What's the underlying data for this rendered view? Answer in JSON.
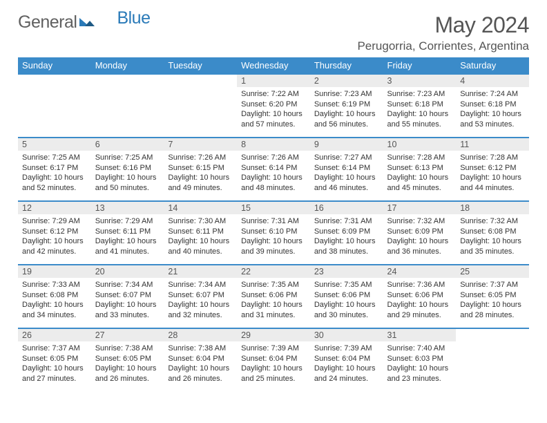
{
  "brand": {
    "word1": "General",
    "word2": "Blue",
    "color_gray": "#606060",
    "color_blue": "#2a7ab8"
  },
  "title": "May 2024",
  "location": "Perugorria, Corrientes, Argentina",
  "theme": {
    "header_bg": "#3b8bc9",
    "header_text": "#ffffff",
    "daynum_bg": "#ececec",
    "row_border": "#3b8bc9",
    "body_text": "#333333",
    "page_bg": "#ffffff",
    "base_font_size": 11
  },
  "weekdays": [
    "Sunday",
    "Monday",
    "Tuesday",
    "Wednesday",
    "Thursday",
    "Friday",
    "Saturday"
  ],
  "weeks": [
    [
      {
        "empty": true
      },
      {
        "empty": true
      },
      {
        "empty": true
      },
      {
        "n": "1",
        "sr": "7:22 AM",
        "ss": "6:20 PM",
        "dl": "10 hours and 57 minutes."
      },
      {
        "n": "2",
        "sr": "7:23 AM",
        "ss": "6:19 PM",
        "dl": "10 hours and 56 minutes."
      },
      {
        "n": "3",
        "sr": "7:23 AM",
        "ss": "6:18 PM",
        "dl": "10 hours and 55 minutes."
      },
      {
        "n": "4",
        "sr": "7:24 AM",
        "ss": "6:18 PM",
        "dl": "10 hours and 53 minutes."
      }
    ],
    [
      {
        "n": "5",
        "sr": "7:25 AM",
        "ss": "6:17 PM",
        "dl": "10 hours and 52 minutes."
      },
      {
        "n": "6",
        "sr": "7:25 AM",
        "ss": "6:16 PM",
        "dl": "10 hours and 50 minutes."
      },
      {
        "n": "7",
        "sr": "7:26 AM",
        "ss": "6:15 PM",
        "dl": "10 hours and 49 minutes."
      },
      {
        "n": "8",
        "sr": "7:26 AM",
        "ss": "6:14 PM",
        "dl": "10 hours and 48 minutes."
      },
      {
        "n": "9",
        "sr": "7:27 AM",
        "ss": "6:14 PM",
        "dl": "10 hours and 46 minutes."
      },
      {
        "n": "10",
        "sr": "7:28 AM",
        "ss": "6:13 PM",
        "dl": "10 hours and 45 minutes."
      },
      {
        "n": "11",
        "sr": "7:28 AM",
        "ss": "6:12 PM",
        "dl": "10 hours and 44 minutes."
      }
    ],
    [
      {
        "n": "12",
        "sr": "7:29 AM",
        "ss": "6:12 PM",
        "dl": "10 hours and 42 minutes."
      },
      {
        "n": "13",
        "sr": "7:29 AM",
        "ss": "6:11 PM",
        "dl": "10 hours and 41 minutes."
      },
      {
        "n": "14",
        "sr": "7:30 AM",
        "ss": "6:11 PM",
        "dl": "10 hours and 40 minutes."
      },
      {
        "n": "15",
        "sr": "7:31 AM",
        "ss": "6:10 PM",
        "dl": "10 hours and 39 minutes."
      },
      {
        "n": "16",
        "sr": "7:31 AM",
        "ss": "6:09 PM",
        "dl": "10 hours and 38 minutes."
      },
      {
        "n": "17",
        "sr": "7:32 AM",
        "ss": "6:09 PM",
        "dl": "10 hours and 36 minutes."
      },
      {
        "n": "18",
        "sr": "7:32 AM",
        "ss": "6:08 PM",
        "dl": "10 hours and 35 minutes."
      }
    ],
    [
      {
        "n": "19",
        "sr": "7:33 AM",
        "ss": "6:08 PM",
        "dl": "10 hours and 34 minutes."
      },
      {
        "n": "20",
        "sr": "7:34 AM",
        "ss": "6:07 PM",
        "dl": "10 hours and 33 minutes."
      },
      {
        "n": "21",
        "sr": "7:34 AM",
        "ss": "6:07 PM",
        "dl": "10 hours and 32 minutes."
      },
      {
        "n": "22",
        "sr": "7:35 AM",
        "ss": "6:06 PM",
        "dl": "10 hours and 31 minutes."
      },
      {
        "n": "23",
        "sr": "7:35 AM",
        "ss": "6:06 PM",
        "dl": "10 hours and 30 minutes."
      },
      {
        "n": "24",
        "sr": "7:36 AM",
        "ss": "6:06 PM",
        "dl": "10 hours and 29 minutes."
      },
      {
        "n": "25",
        "sr": "7:37 AM",
        "ss": "6:05 PM",
        "dl": "10 hours and 28 minutes."
      }
    ],
    [
      {
        "n": "26",
        "sr": "7:37 AM",
        "ss": "6:05 PM",
        "dl": "10 hours and 27 minutes."
      },
      {
        "n": "27",
        "sr": "7:38 AM",
        "ss": "6:05 PM",
        "dl": "10 hours and 26 minutes."
      },
      {
        "n": "28",
        "sr": "7:38 AM",
        "ss": "6:04 PM",
        "dl": "10 hours and 26 minutes."
      },
      {
        "n": "29",
        "sr": "7:39 AM",
        "ss": "6:04 PM",
        "dl": "10 hours and 25 minutes."
      },
      {
        "n": "30",
        "sr": "7:39 AM",
        "ss": "6:04 PM",
        "dl": "10 hours and 24 minutes."
      },
      {
        "n": "31",
        "sr": "7:40 AM",
        "ss": "6:03 PM",
        "dl": "10 hours and 23 minutes."
      },
      {
        "empty": true
      }
    ]
  ],
  "labels": {
    "sunrise": "Sunrise:",
    "sunset": "Sunset:",
    "daylight": "Daylight:"
  }
}
